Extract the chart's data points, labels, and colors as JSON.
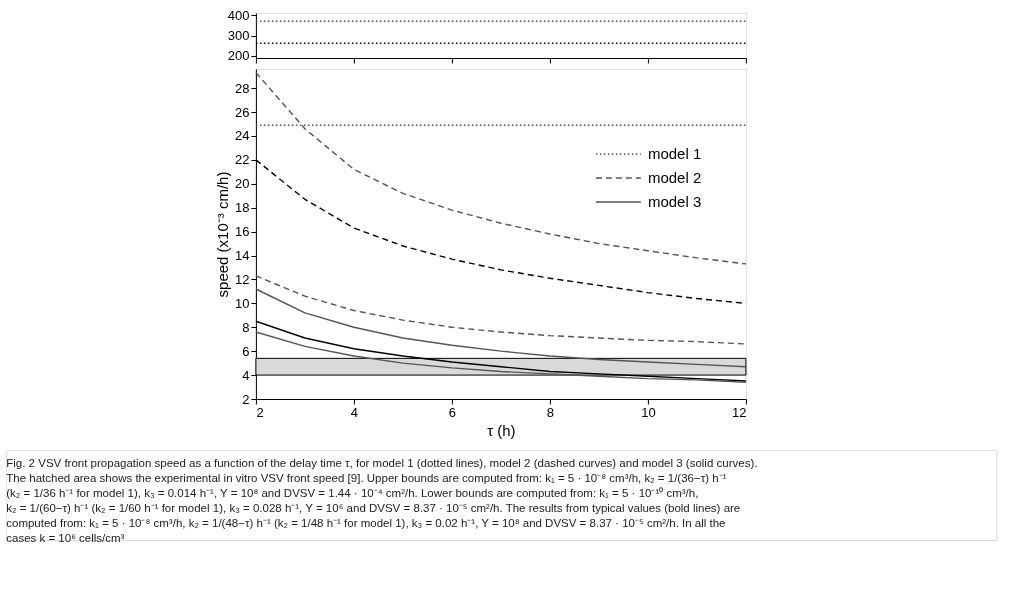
{
  "chart_data": [
    {
      "type": "line",
      "x": [
        2,
        3,
        4,
        5,
        6,
        7,
        8,
        9,
        10,
        11,
        12
      ],
      "xlim": [
        2,
        12
      ],
      "xticks": [
        2,
        4,
        6,
        8,
        10,
        12
      ],
      "ylim": [
        190,
        410
      ],
      "yticks": [
        200,
        300,
        400
      ],
      "tick_labels": "y",
      "series": [
        {
          "color": "#555555",
          "line_style": "dotted",
          "values": [
            370,
            370,
            370,
            370,
            370,
            370,
            370,
            370,
            370,
            370,
            370
          ]
        },
        {
          "color": "#000000",
          "line_style": "dotted",
          "values": [
            262,
            262,
            262,
            262,
            262,
            262,
            262,
            262,
            262,
            262,
            262
          ]
        }
      ]
    },
    {
      "type": "line",
      "x": [
        2,
        3,
        4,
        5,
        6,
        7,
        8,
        9,
        10,
        11,
        12
      ],
      "xlim": [
        2,
        12
      ],
      "xticks": [
        2,
        4,
        6,
        8,
        10,
        12
      ],
      "ylim": [
        2,
        29.6
      ],
      "yticks": [
        2,
        4,
        6,
        8,
        10,
        12,
        14,
        16,
        18,
        20,
        22,
        24,
        26,
        28
      ],
      "xlabel": "τ (h)",
      "ylabel": "speed (x10⁻³ cm/h)",
      "legend": "right",
      "bands": [
        {
          "axis": "y",
          "from": 4,
          "to": 5.4,
          "color": "#d9d9d9"
        }
      ],
      "series": [
        {
          "name": "model 1",
          "color": "#555555",
          "line_style": "dotted",
          "values": [
            24.9,
            24.9,
            24.9,
            24.9,
            24.9,
            24.9,
            24.9,
            24.9,
            24.9,
            24.9,
            24.9
          ]
        },
        {
          "name": "model 2",
          "color": "#555555",
          "line_style": "dashed",
          "values": [
            29.3,
            24.6,
            21.2,
            19.2,
            17.8,
            16.7,
            15.8,
            15.0,
            14.4,
            13.8,
            13.3
          ]
        },
        {
          "color": "#000000",
          "line_style": "dashed",
          "values": [
            22.0,
            18.7,
            16.3,
            14.8,
            13.7,
            12.8,
            12.1,
            11.5,
            10.9,
            10.4,
            10.0
          ]
        },
        {
          "color": "#555555",
          "line_style": "dashed",
          "values": [
            12.3,
            10.6,
            9.4,
            8.6,
            8.0,
            7.6,
            7.3,
            7.1,
            6.9,
            6.8,
            6.6
          ]
        },
        {
          "name": "model 3",
          "color": "#555555",
          "line_style": "solid",
          "values": [
            11.2,
            9.2,
            8.0,
            7.1,
            6.5,
            6.0,
            5.6,
            5.3,
            5.1,
            4.9,
            4.7
          ]
        },
        {
          "color": "#000000",
          "line_style": "solid",
          "values": [
            8.5,
            7.1,
            6.2,
            5.6,
            5.1,
            4.7,
            4.3,
            4.1,
            3.9,
            3.7,
            3.5
          ]
        },
        {
          "color": "#555555",
          "line_style": "solid",
          "values": [
            7.6,
            6.4,
            5.6,
            5.0,
            4.6,
            4.3,
            4.1,
            3.9,
            3.7,
            3.6,
            3.4
          ]
        }
      ],
      "annotations": [
        "Fig. 2 VSV front propagation speed as a function of the delay time τ, for model 1 (dotted lines), model 2 (dashed curves) and model 3 (solid curves).",
        "The hatched area shows the experimental in vitro VSV front speed [9]. Upper bounds are computed from: k₁ = 5 · 10⁻⁸ cm³/h, k₂ = 1/(36−τ) h⁻¹",
        "(k₂ = 1/36 h⁻¹ for model 1), k₃ = 0.014 h⁻¹, Y = 10⁸ and DVSV = 1.44 · 10⁻⁴ cm²/h. Lower bounds are computed from: k₁ = 5 · 10⁻¹⁰ cm³/h,",
        "k₂ = 1/(60−τ) h⁻¹ (k₂ = 1/60 h⁻¹ for model 1), k₃ = 0.028 h⁻¹, Y = 10⁶ and DVSV = 8.37 · 10⁻⁵ cm²/h. The results from typical values (bold lines) are",
        "computed from: k₁ = 5 · 10⁻⁸ cm³/h, k₂ = 1/(48−τ) h⁻¹ (k₂ = 1/48 h⁻¹ for model 1), k₃ = 0.02 h⁻¹, Y = 10⁸ and DVSV = 8.37 · 10⁻⁵ cm²/h. In all the",
        "cases k = 10⁶ cells/cm³"
      ]
    }
  ]
}
